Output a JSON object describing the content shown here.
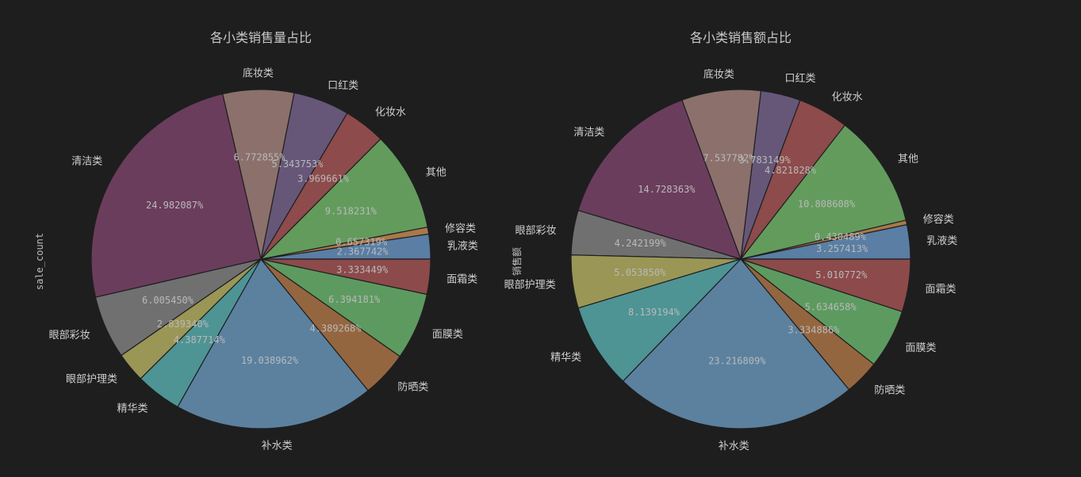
{
  "chart_data": [
    {
      "type": "pie",
      "title": "各小类销售量占比",
      "ylabel": "sale_count",
      "slices": [
        {
          "label": "乳液类",
          "value": 2.367742,
          "pct": "2.367742%",
          "color": "#5a7ea4"
        },
        {
          "label": "修容类",
          "value": 0.657319,
          "pct": "0.657319%",
          "color": "#a9794a"
        },
        {
          "label": "其他",
          "value": 9.518231,
          "pct": "9.518231%",
          "color": "#639b5d"
        },
        {
          "label": "化妆水",
          "value": 3.969661,
          "pct": "3.969661%",
          "color": "#8d4b4b"
        },
        {
          "label": "口红类",
          "value": 5.343753,
          "pct": "5.343753%",
          "color": "#665779"
        },
        {
          "label": "底妆类",
          "value": 6.772855,
          "pct": "6.772855%",
          "color": "#8b706c"
        },
        {
          "label": "清洁类",
          "value": 24.982087,
          "pct": "24.982087%",
          "color": "#6b3d5c"
        },
        {
          "label": "眼部彩妆",
          "value": 6.00545,
          "pct": "6.005450%",
          "color": "#707070"
        },
        {
          "label": "眼部护理类",
          "value": 2.83934,
          "pct": "2.839340%",
          "color": "#9a9656"
        },
        {
          "label": "精华类",
          "value": 4.387714,
          "pct": "4.387714%",
          "color": "#4e9495"
        },
        {
          "label": "补水类",
          "value": 19.038962,
          "pct": "19.038962%",
          "color": "#5b819f"
        },
        {
          "label": "防晒类",
          "value": 4.389268,
          "pct": "4.389268%",
          "color": "#946640"
        },
        {
          "label": "面膜类",
          "value": 6.394181,
          "pct": "6.394181%",
          "color": "#5d9a60"
        },
        {
          "label": "面霜类",
          "value": 3.333449,
          "pct": "3.333449%",
          "color": "#8c4a4b"
        }
      ]
    },
    {
      "type": "pie",
      "title": "各小类销售额占比",
      "ylabel": "销售额",
      "slices": [
        {
          "label": "乳液类",
          "value": 3.257413,
          "pct": "3.257413%",
          "color": "#5a7ea4"
        },
        {
          "label": "修容类",
          "value": 0.430489,
          "pct": "0.430489%",
          "color": "#a9794a"
        },
        {
          "label": "其他",
          "value": 10.808608,
          "pct": "10.808608%",
          "color": "#639b5d"
        },
        {
          "label": "化妆水",
          "value": 4.821828,
          "pct": "4.821828%",
          "color": "#8d4b4b"
        },
        {
          "label": "口红类",
          "value": 3.783149,
          "pct": "3.783149%",
          "color": "#665779"
        },
        {
          "label": "底妆类",
          "value": 7.537782,
          "pct": "7.537782%",
          "color": "#8b706c"
        },
        {
          "label": "清洁类",
          "value": 14.728363,
          "pct": "14.728363%",
          "color": "#6b3d5c"
        },
        {
          "label": "眼部彩妆",
          "value": 4.242199,
          "pct": "4.242199%",
          "color": "#707070"
        },
        {
          "label": "眼部护理类",
          "value": 5.05385,
          "pct": "5.053850%",
          "color": "#9a9656"
        },
        {
          "label": "精华类",
          "value": 8.139194,
          "pct": "8.139194%",
          "color": "#4e9495"
        },
        {
          "label": "补水类",
          "value": 23.216809,
          "pct": "23.216809%",
          "color": "#5b819f"
        },
        {
          "label": "防晒类",
          "value": 3.334886,
          "pct": "3.334886%",
          "color": "#946640"
        },
        {
          "label": "面膜类",
          "value": 5.634658,
          "pct": "5.634658%",
          "color": "#5d9a60"
        },
        {
          "label": "面霜类",
          "value": 5.010772,
          "pct": "5.010772%",
          "color": "#8c4a4b"
        }
      ]
    }
  ]
}
